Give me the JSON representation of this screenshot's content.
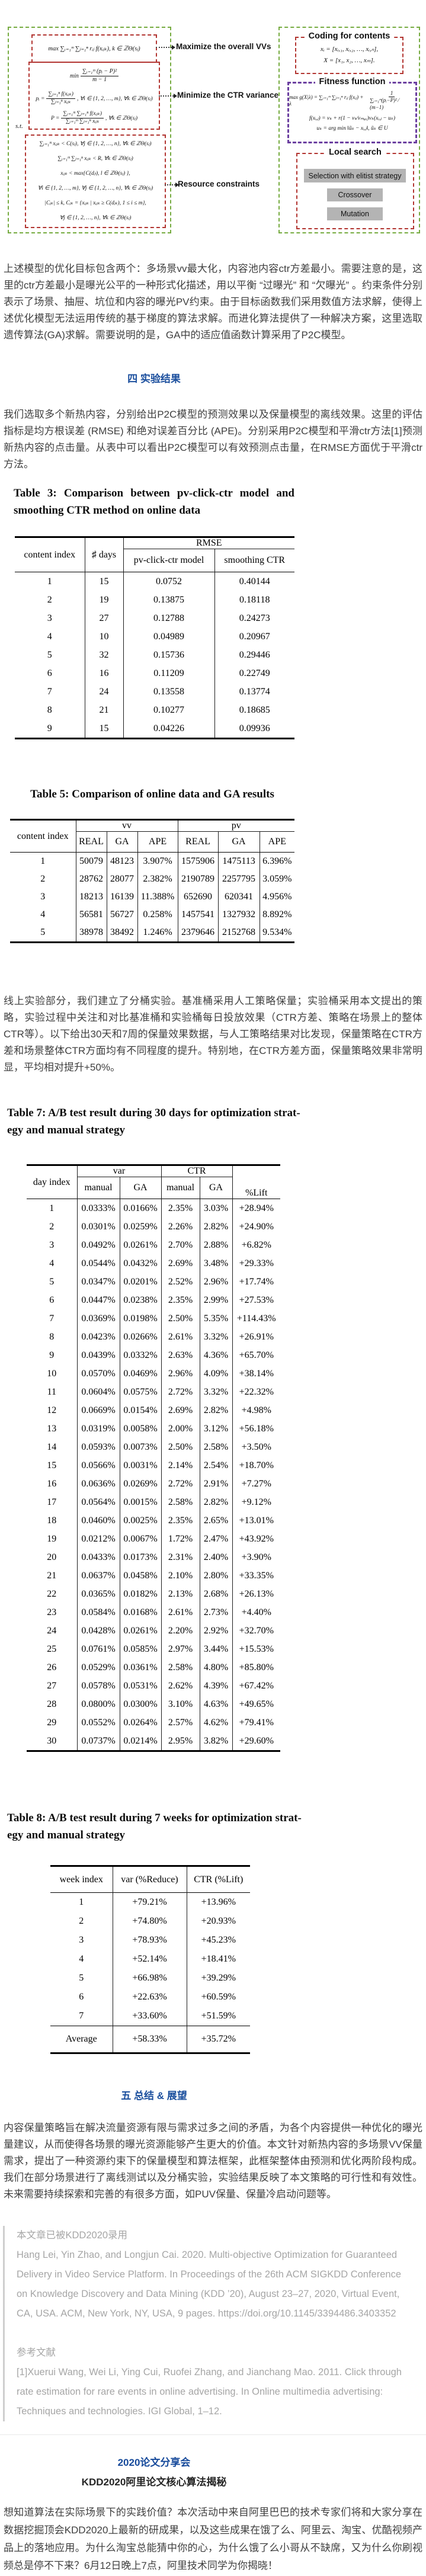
{
  "colors": {
    "accent_blue": "#1a4e9d",
    "green_border": "#76ab40",
    "red_border": "#b23531",
    "purple_border": "#6b3fa0",
    "button_gray": "#b4b4b4",
    "quote_gray": "#a6a6a6"
  },
  "figure": {
    "left": {
      "obj1": "max ∑ᵢ₌₁ᵐ ∑ⱼ₌₁ⁿ rᵢⱼ f(xᵢⱼₖ), k ∈ ℤΘ(sⱼ)",
      "min_label": "min",
      "min_num": "∑ᵢ₌₁ᵐ (pᵢ − P)²",
      "min_den": "m − 1",
      "pi_lhs": "pᵢ =",
      "pi_num": "∑ⱼ₌₁ⁿ f(xᵢⱼₖ)",
      "pi_den": "∑ⱼ₌₁ⁿ xᵢⱼₖ",
      "pi_tail": ", ∀i ∈ {1, 2, …, m}, ∀k ∈ ℤΘ(sⱼ)",
      "P_lhs": "P =",
      "P_num": "∑ᵢ₌₁ᵐ ∑ⱼ₌₁ⁿ f(xᵢⱼₖ)",
      "P_den": "∑ᵢ₌₁ᵐ ∑ⱼ₌₁ⁿ xᵢⱼₖ",
      "P_tail": ", ∀k ∈ ℤΘ(sⱼ)",
      "st": "s.t.",
      "constraints": [
        "∑ᵢ₌₁ᵐ xᵢⱼₖ < C(sⱼ), ∀j ∈ {1, 2, …, n}, ∀k ∈ ℤΘ(sⱼ)",
        "∑ᵢ₌₁ᵐ ∑ⱼ₌₁ⁿ xᵢⱼₖ < R, ∀k ∈ ℤΘ(sⱼ)",
        "xᵢⱼₖ < max{C(dⱼₗ), l ∈ ℤΘ(sⱼ) },",
        "∀i ∈ {1, 2, …, m}, ∀j ∈ {1, 2, …, n}, ∀k ∈ ℤΘ(sⱼ)",
        "|Cⱼₖ| ≤ k, Cⱼₖ = {xᵢⱼₖ | xᵢⱼₖ ≥ C(dⱼₖ), 1 ≤ i ≤ m},",
        "∀j ∈ {1, 2, …, n}, ∀k ∈ ℤΘ(sⱼ)"
      ]
    },
    "labels": {
      "max_vv": "Maximize the overall VVs",
      "min_ctr": "Minimize the CTR variance",
      "resource": "Resource constraints"
    },
    "right": {
      "coding_title": "Coding for contents",
      "coding_l1": "xᵢ = [xᵢ,₁, xᵢ,₂, …, xᵢ,ₙ],",
      "coding_l2": "X = [x₁, x₂, …, xₘ].",
      "fitness_title": "Fitness function",
      "fit_lhs": "max g(X|λ) = ∑ᵢ₌₁ᵐ ∑ⱼ₌₁ⁿ rᵢⱼ f(xᵢⱼ) + λ",
      "fit_num": "1",
      "fit_den": "∑ᵢ₌₁ᵐ(pᵢ−P)² ⁄ (m−1)",
      "fit_f": "f(xᵢ,ⱼ) = vₖ + r(1 − vₖ⁄vₘₐₓ)vₖ(xᵢ,ⱼ − uₖ)",
      "fit_u": "uₖ = arg min ‖ũₖ − xᵢ,ⱼ‖, ũₖ ∈ U",
      "local_title": "Local search",
      "btn1": "Selection with elitist strategy",
      "btn2": "Crossover",
      "btn3": "Mutation"
    }
  },
  "headings": {
    "sec4": "四  实验结果",
    "sec5": "五  总结 & 展望"
  },
  "paragraphs": {
    "p1": "上述模型的优化目标包含两个：多场景vv最大化，内容池内容ctr方差最小。需要注意的是，这里的ctr方差最小是曝光公平的一种形式化描述，用以平衡 “过曝光” 和 “欠曝光” 。约束条件分别表示了场景、抽屉、坑位和内容的曝光PV约束。由于目标函数我们采用数值方法求解，使得上述优化模型无法运用传统的基于梯度的算法求解。而进化算法提供了一种解决方案，这里选取遗传算法(GA)求解。需要说明的是，GA中的适应值函数计算采用了P2C模型。",
    "p2": "我们选取多个新热内容，分别给出P2C模型的预测效果以及保量模型的离线效果。这里的评估指标是均方根误差 (RMSE) 和绝对误差百分比 (APE)。分别采用P2C模型和平滑ctr方法[1]预测新热内容的点击量。从表中可以看出P2C模型可以有效预测点击量，在RMSE方面优于平滑ctr方法。",
    "p3": "线上实验部分，我们建立了分桶实验。基准桶采用人工策略保量；实验桶采用本文提出的策略，实验过程中关注和对比基准桶和实验桶每日投放效果（CTR方差、策略在场景上的整体CTR等）。以下给出30天和7周的保量效果数据，与人工策略结果对比发现，保量策略在CTR方差和场景整体CTR方面均有不同程度的提升。特别地，在CTR方差方面，保量策略效果非常明显，平均相对提升+50%。",
    "p4": "内容保量策略旨在解决流量资源有限与需求过多之间的矛盾，为各个内容提供一种优化的曝光量建议，从而使得各场景的曝光资源能够产生更大的价值。本文针对新热内容的多场景VV保量需求，提出了一种资源约束下的保量模型和算法框架，此框架整体由预测和优化两阶段构成。我们在部分场景进行了离线测试以及分桶实验，实验结果反映了本文策略的可行性和有效性。未来需要持续探索和完善的有很多方面，如PUV保量、保量冷启动问题等。"
  },
  "tables": {
    "table3": {
      "title_l1": "Table 3: Comparison between pv-click-ctr model and",
      "title_l2": "smoothing CTR method on online data",
      "col_content_index": "content index",
      "col_days": "♯ days",
      "col_rmse": "RMSE",
      "col_model": "pv-click-ctr model",
      "col_smooth": "smoothing CTR",
      "rows": [
        [
          "1",
          "15",
          "0.0752",
          "0.40144"
        ],
        [
          "2",
          "19",
          "0.13875",
          "0.18118"
        ],
        [
          "3",
          "27",
          "0.12788",
          "0.24273"
        ],
        [
          "4",
          "10",
          "0.04989",
          "0.20967"
        ],
        [
          "5",
          "32",
          "0.15736",
          "0.29446"
        ],
        [
          "6",
          "16",
          "0.11209",
          "0.22749"
        ],
        [
          "7",
          "24",
          "0.13558",
          "0.13774"
        ],
        [
          "8",
          "21",
          "0.10277",
          "0.18685"
        ],
        [
          "9",
          "15",
          "0.04226",
          "0.09936"
        ]
      ]
    },
    "table5": {
      "title": "Table 5: Comparison of online data and GA results",
      "col_content_index": "content index",
      "col_vv": "vv",
      "col_pv": "pv",
      "col_real": "REAL",
      "col_ga": "GA",
      "col_ape": "APE",
      "rows": [
        [
          "1",
          "50079",
          "48123",
          "3.907%",
          "1575906",
          "1475113",
          "6.396%"
        ],
        [
          "2",
          "28762",
          "28077",
          "2.382%",
          "2190789",
          "2257795",
          "3.059%"
        ],
        [
          "3",
          "18213",
          "16139",
          "11.388%",
          "652690",
          "620341",
          "4.956%"
        ],
        [
          "4",
          "56581",
          "56727",
          "0.258%",
          "1457541",
          "1327932",
          "8.892%"
        ],
        [
          "5",
          "38978",
          "38492",
          "1.246%",
          "2379646",
          "2152768",
          "9.534%"
        ]
      ]
    },
    "table7": {
      "title_l1": "Table 7: A/B test result during 30 days for optimization strat-",
      "title_l2": "egy and manual strategy",
      "col_day_index": "day index",
      "col_var": "var",
      "col_ctr": "CTR",
      "col_manual": "manual",
      "col_ga": "GA",
      "col_lift": "%Lift",
      "rows": [
        [
          "1",
          "0.0333%",
          "0.0166%",
          "2.35%",
          "3.03%",
          "+28.94%"
        ],
        [
          "2",
          "0.0301%",
          "0.0259%",
          "2.26%",
          "2.82%",
          "+24.90%"
        ],
        [
          "3",
          "0.0492%",
          "0.0261%",
          "2.70%",
          "2.88%",
          "+6.82%"
        ],
        [
          "4",
          "0.0544%",
          "0.0432%",
          "2.69%",
          "3.48%",
          "+29.33%"
        ],
        [
          "5",
          "0.0347%",
          "0.0201%",
          "2.52%",
          "2.96%",
          "+17.74%"
        ],
        [
          "6",
          "0.0447%",
          "0.0238%",
          "2.35%",
          "2.99%",
          "+27.53%"
        ],
        [
          "7",
          "0.0369%",
          "0.0198%",
          "2.50%",
          "5.35%",
          "+114.43%"
        ],
        [
          "8",
          "0.0423%",
          "0.0266%",
          "2.61%",
          "3.32%",
          "+26.91%"
        ],
        [
          "9",
          "0.0439%",
          "0.0332%",
          "2.63%",
          "4.36%",
          "+65.70%"
        ],
        [
          "10",
          "0.0570%",
          "0.0469%",
          "2.96%",
          "4.09%",
          "+38.14%"
        ],
        [
          "11",
          "0.0604%",
          "0.0575%",
          "2.72%",
          "3.32%",
          "+22.32%"
        ],
        [
          "12",
          "0.0669%",
          "0.0154%",
          "2.69%",
          "2.82%",
          "+4.98%"
        ],
        [
          "13",
          "0.0319%",
          "0.0058%",
          "2.00%",
          "3.12%",
          "+56.18%"
        ],
        [
          "14",
          "0.0593%",
          "0.0073%",
          "2.50%",
          "2.58%",
          "+3.50%"
        ],
        [
          "15",
          "0.0566%",
          "0.0031%",
          "2.14%",
          "2.54%",
          "+18.70%"
        ],
        [
          "16",
          "0.0636%",
          "0.0269%",
          "2.72%",
          "2.91%",
          "+7.27%"
        ],
        [
          "17",
          "0.0564%",
          "0.0015%",
          "2.58%",
          "2.82%",
          "+9.12%"
        ],
        [
          "18",
          "0.0460%",
          "0.0025%",
          "2.35%",
          "2.65%",
          "+13.01%"
        ],
        [
          "19",
          "0.0212%",
          "0.0067%",
          "1.72%",
          "2.47%",
          "+43.92%"
        ],
        [
          "20",
          "0.0433%",
          "0.0173%",
          "2.31%",
          "2.40%",
          "+3.90%"
        ],
        [
          "21",
          "0.0637%",
          "0.0458%",
          "2.10%",
          "2.80%",
          "+33.35%"
        ],
        [
          "22",
          "0.0365%",
          "0.0182%",
          "2.13%",
          "2.68%",
          "+26.13%"
        ],
        [
          "23",
          "0.0584%",
          "0.0168%",
          "2.61%",
          "2.73%",
          "+4.40%"
        ],
        [
          "24",
          "0.0428%",
          "0.0261%",
          "2.20%",
          "2.92%",
          "+32.70%"
        ],
        [
          "25",
          "0.0761%",
          "0.0585%",
          "2.97%",
          "3.44%",
          "+15.53%"
        ],
        [
          "26",
          "0.0529%",
          "0.0361%",
          "2.58%",
          "4.80%",
          "+85.80%"
        ],
        [
          "27",
          "0.0578%",
          "0.0531%",
          "2.62%",
          "4.39%",
          "+67.42%"
        ],
        [
          "28",
          "0.0800%",
          "0.0300%",
          "3.10%",
          "4.63%",
          "+49.65%"
        ],
        [
          "29",
          "0.0552%",
          "0.0264%",
          "2.57%",
          "4.62%",
          "+79.41%"
        ],
        [
          "30",
          "0.0737%",
          "0.0214%",
          "2.95%",
          "3.82%",
          "+29.60%"
        ]
      ]
    },
    "table8": {
      "title_l1": "Table 8: A/B test result during 7 weeks for optimization strat-",
      "title_l2": "egy and manual strategy",
      "col_week_index": "week index",
      "col_var": "var (%Reduce)",
      "col_ctr": "CTR (%Lift)",
      "rows": [
        [
          "1",
          "+79.21%",
          "+13.96%"
        ],
        [
          "2",
          "+74.80%",
          "+20.93%"
        ],
        [
          "3",
          "+78.93%",
          "+45.23%"
        ],
        [
          "4",
          "+52.14%",
          "+18.41%"
        ],
        [
          "5",
          "+66.98%",
          "+39.29%"
        ],
        [
          "6",
          "+22.63%",
          "+60.59%"
        ],
        [
          "7",
          "+33.60%",
          "+51.59%"
        ]
      ],
      "avg_label": "Average",
      "avg_var": "+58.33%",
      "avg_ctr": "+35.72%"
    }
  },
  "quote": {
    "lines": [
      "本文章已被KDD2020录用",
      "Hang Lei, Yin Zhao, and Longjun Cai. 2020. Multi-objective Optimization for Guaranteed",
      "Delivery in Video Service Platform. In Proceedings of the 26th ACM SIGKDD Conference",
      "on Knowledge Discovery and Data Mining (KDD ’20), August 23–27, 2020, Virtual Event,",
      "CA, USA. ACM, New York, NY, USA, 9 pages. https://doi.org/10.1145/3394486.3403352",
      "",
      "参考文献",
      "[1]Xuerui Wang, Wei Li, Ying Cui, Ruofei Zhang, and Jianchang Mao. 2011. Click through",
      "rate estimation for rare events in online advertising. In Online multimedia advertising:",
      "Techniques and technologies. IGI Global, 1–12."
    ]
  },
  "footer": {
    "blue_title": "2020论文分享会",
    "black_title": "KDD2020阿里论文核心算法揭秘",
    "body": "想知道算法在实际场景下的实践价值？本次活动中来自阿里巴巴的技术专家们将和大家分享在数据挖掘顶会KDD2020上最新的研成果，以及这些成果在饿了么、阿里云、淘宝、优酷视频产品上的落地应用。为什么淘宝总能猜中你的心，为什么饿了么小哥从不缺席，又为什么你刷视频总是停不下来？6月12日晚上7点，阿里技术同学为你揭晓！"
  }
}
